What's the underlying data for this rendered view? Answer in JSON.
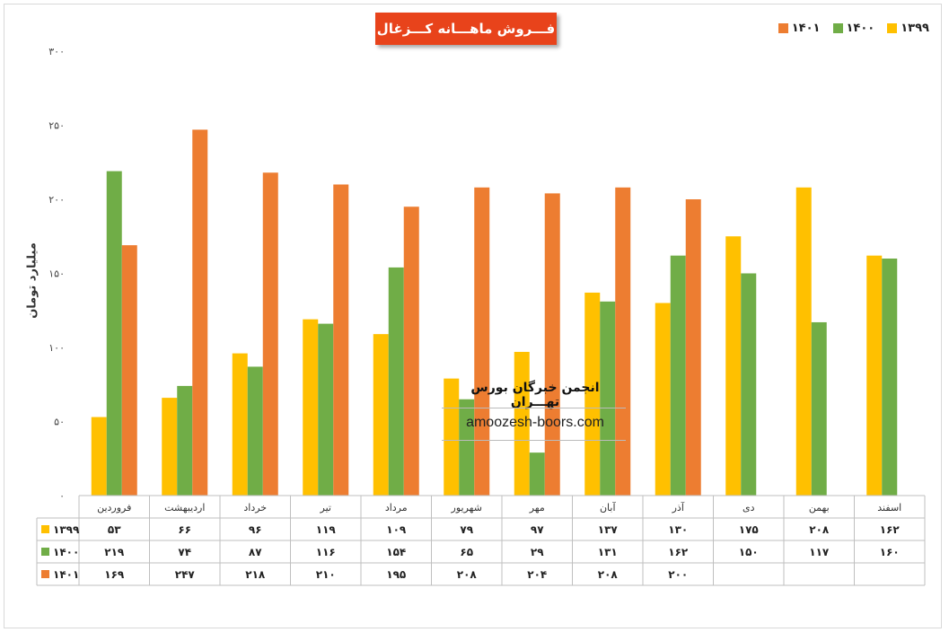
{
  "chart_data": {
    "type": "bar",
    "title": "فـــروش ماهـــانه کـــزغال",
    "ylabel": "میلیارد تومان",
    "ylim": [
      0,
      300
    ],
    "yticks": [
      "۰",
      "۵۰",
      "۱۰۰",
      "۱۵۰",
      "۲۰۰",
      "۲۵۰",
      "۳۰۰"
    ],
    "categories": [
      "فروردین",
      "اردیبهشت",
      "خرداد",
      "تیر",
      "مرداد",
      "شهریور",
      "مهر",
      "آبان",
      "آذر",
      "دی",
      "بهمن",
      "اسفند"
    ],
    "series": [
      {
        "name": "۱۳۹۹",
        "color": "#ffc000",
        "values": [
          53,
          66,
          96,
          119,
          109,
          79,
          97,
          137,
          130,
          175,
          208,
          162
        ],
        "labels": [
          "۵۳",
          "۶۶",
          "۹۶",
          "۱۱۹",
          "۱۰۹",
          "۷۹",
          "۹۷",
          "۱۳۷",
          "۱۳۰",
          "۱۷۵",
          "۲۰۸",
          "۱۶۲"
        ]
      },
      {
        "name": "۱۴۰۰",
        "color": "#70ad47",
        "values": [
          219,
          74,
          87,
          116,
          154,
          65,
          29,
          131,
          162,
          150,
          117,
          160
        ],
        "labels": [
          "۲۱۹",
          "۷۴",
          "۸۷",
          "۱۱۶",
          "۱۵۴",
          "۶۵",
          "۲۹",
          "۱۳۱",
          "۱۶۲",
          "۱۵۰",
          "۱۱۷",
          "۱۶۰"
        ]
      },
      {
        "name": "۱۴۰۱",
        "color": "#ed7d31",
        "values": [
          169,
          247,
          218,
          210,
          195,
          208,
          204,
          208,
          200,
          null,
          null,
          null
        ],
        "labels": [
          "۱۶۹",
          "۲۴۷",
          "۲۱۸",
          "۲۱۰",
          "۱۹۵",
          "۲۰۸",
          "۲۰۴",
          "۲۰۸",
          "۲۰۰",
          "",
          "",
          ""
        ]
      }
    ],
    "legend_position": "top-right",
    "data_table": true
  },
  "watermark": {
    "name": "انجمن خبرگان بورس تهـــران",
    "site": "amoozesh-boors.com"
  }
}
